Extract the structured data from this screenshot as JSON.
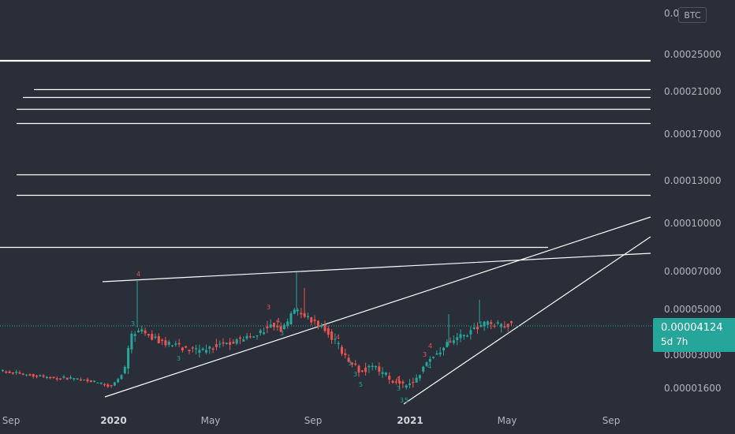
{
  "currency_badge": "BTC",
  "last_price": {
    "value": "0.00004124",
    "countdown": "5d 7h",
    "color": "#26a69a"
  },
  "colors": {
    "background": "#2a2e39",
    "up_candle": "#26a69a",
    "down_candle": "#ef5350",
    "drawing_lines": "#ffffff",
    "axis_text": "#b2b5be"
  },
  "chart_data": {
    "type": "candlestick",
    "y_axis_labels": [
      "0.00025000",
      "0.00021000",
      "0.00017000",
      "0.00013000",
      "0.00010000",
      "0.00007000",
      "0.00005000",
      "0.00003000",
      "0.00001600"
    ],
    "y_axis_label_partial": "0.0...000",
    "x_axis_labels": [
      {
        "text": "Sep",
        "bold": false
      },
      {
        "text": "2020",
        "bold": true
      },
      {
        "text": "May",
        "bold": false
      },
      {
        "text": "Sep",
        "bold": false
      },
      {
        "text": "2021",
        "bold": true
      },
      {
        "text": "May",
        "bold": false
      },
      {
        "text": "Sep",
        "bold": false
      }
    ],
    "horizontal_levels": [
      0.000244,
      0.000243,
      0.000191,
      0.000179,
      0.000161,
      0.000143,
      9.3e-05,
      7.8e-05,
      5.05e-05
    ],
    "wave_labels": [
      "4",
      "3",
      "3",
      "3",
      "4",
      "3",
      "5",
      "3",
      "4",
      "3",
      "4",
      "3",
      "4",
      "3",
      "5",
      "3",
      "4"
    ],
    "last_price": 4.124e-05,
    "price_scale": "log",
    "grid": false
  }
}
